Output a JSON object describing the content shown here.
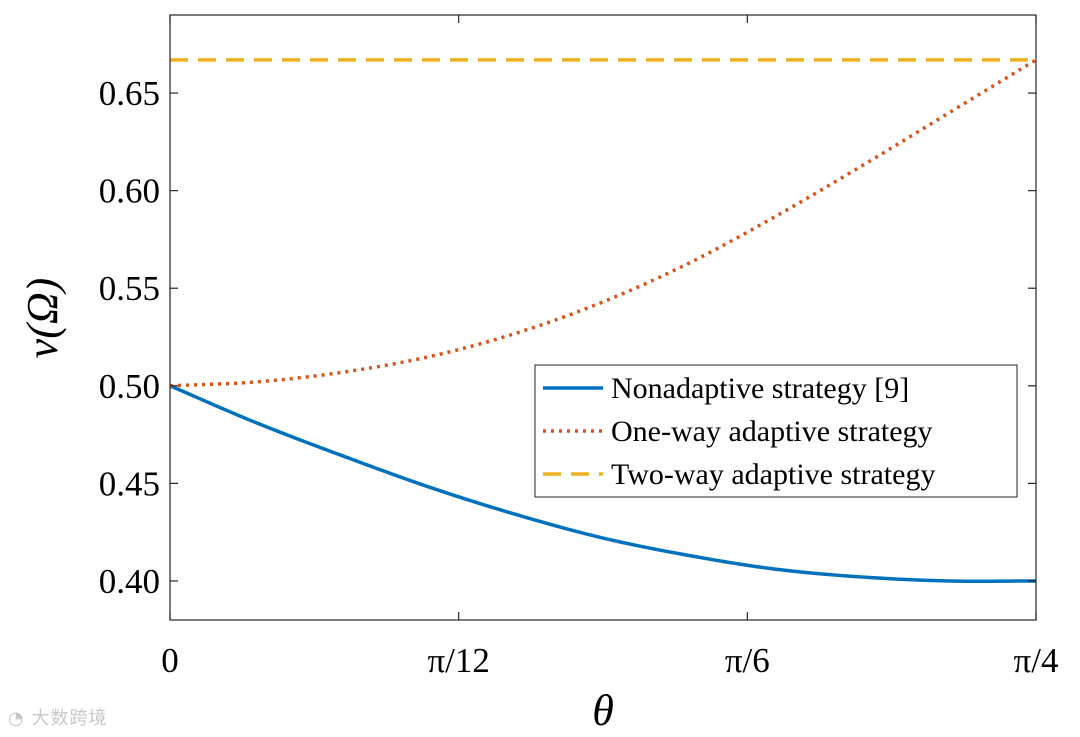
{
  "chart_data": {
    "type": "line",
    "xlabel": "θ",
    "ylabel": "v(Ω)",
    "xlim": [
      0,
      0.785398
    ],
    "ylim": [
      0.38,
      0.69
    ],
    "x_ticks": [
      {
        "value": 0,
        "label": "0"
      },
      {
        "value": 0.261799,
        "label": "π/12"
      },
      {
        "value": 0.523599,
        "label": "π/6"
      },
      {
        "value": 0.785398,
        "label": "π/4"
      }
    ],
    "y_ticks": [
      {
        "value": 0.4,
        "label": "0.40"
      },
      {
        "value": 0.45,
        "label": "0.45"
      },
      {
        "value": 0.5,
        "label": "0.50"
      },
      {
        "value": 0.55,
        "label": "0.55"
      },
      {
        "value": 0.6,
        "label": "0.60"
      },
      {
        "value": 0.65,
        "label": "0.65"
      }
    ],
    "x": [
      0,
      0.0785398,
      0.1570796,
      0.2356194,
      0.3141593,
      0.3926991,
      0.4712389,
      0.5497787,
      0.6283185,
      0.7068583,
      0.7853982
    ],
    "series": [
      {
        "name": "Nonadaptive strategy [9]",
        "color": "#0072BD",
        "style": "solid",
        "values": [
          0.5,
          0.481,
          0.464,
          0.448,
          0.434,
          0.422,
          0.413,
          0.406,
          0.402,
          0.4,
          0.4
        ]
      },
      {
        "name": "One-way adaptive strategy",
        "color": "#D95319",
        "style": "dotted",
        "values": [
          0.5,
          0.502,
          0.507,
          0.515,
          0.527,
          0.543,
          0.563,
          0.587,
          0.613,
          0.64,
          0.667
        ]
      },
      {
        "name": "Two-way adaptive strategy",
        "color": "#EDB120",
        "style": "dashed",
        "values": [
          0.667,
          0.667,
          0.667,
          0.667,
          0.667,
          0.667,
          0.667,
          0.667,
          0.667,
          0.667,
          0.667
        ]
      }
    ],
    "grid": false,
    "legend_position": "lower-right"
  },
  "watermark": {
    "text": "大数跨境",
    "icon": "weibo-logo-icon"
  }
}
